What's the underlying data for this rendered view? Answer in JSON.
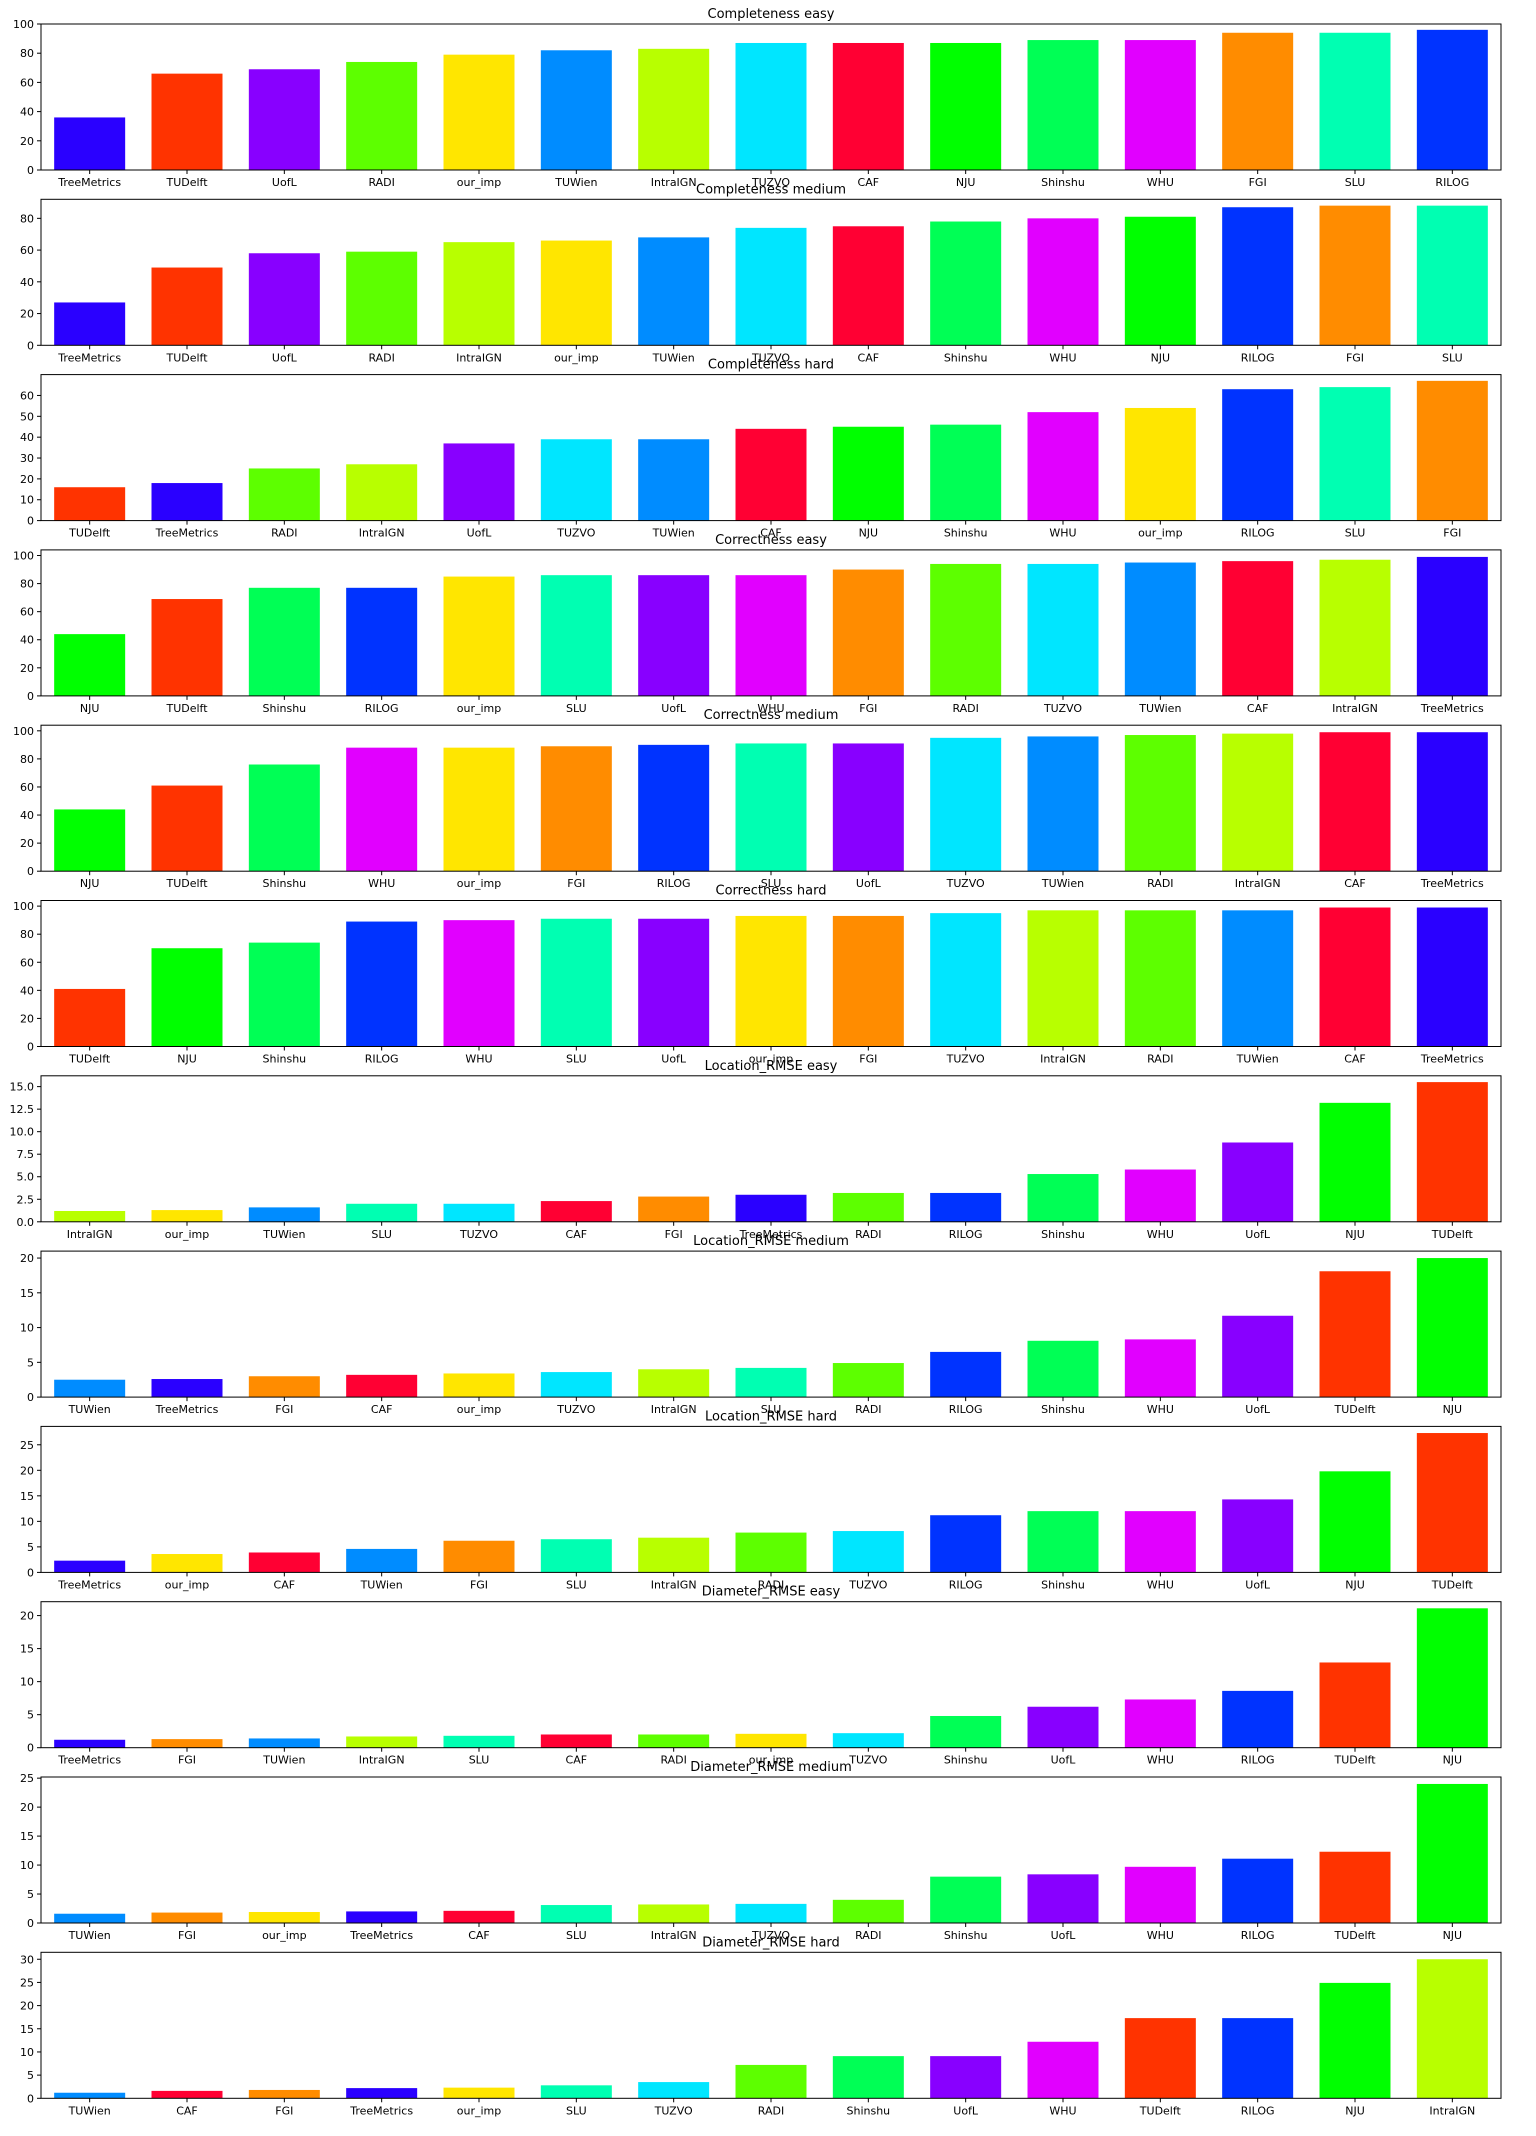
{
  "chart_data": [
    {
      "type": "bar",
      "title": "Completeness easy",
      "categories": [
        "TreeMetrics",
        "TUDelft",
        "UofL",
        "RADI",
        "our_imp",
        "TUWien",
        "IntraIGN",
        "TUZVO",
        "CAF",
        "NJU",
        "Shinshu",
        "WHU",
        "FGI",
        "SLU",
        "RILOG"
      ],
      "values": [
        36,
        66,
        69,
        74,
        79,
        82,
        83,
        87,
        87,
        87,
        89,
        89,
        94,
        94,
        96
      ],
      "ylim": [
        0,
        100
      ],
      "yticks": [
        "0",
        "20",
        "40",
        "60",
        "80",
        "100"
      ]
    },
    {
      "type": "bar",
      "title": "Completeness medium",
      "categories": [
        "TreeMetrics",
        "TUDelft",
        "UofL",
        "RADI",
        "IntraIGN",
        "our_imp",
        "TUWien",
        "TUZVO",
        "CAF",
        "Shinshu",
        "WHU",
        "NJU",
        "RILOG",
        "FGI",
        "SLU"
      ],
      "values": [
        27,
        49,
        58,
        59,
        65,
        66,
        68,
        74,
        75,
        78,
        80,
        81,
        87,
        88,
        88
      ],
      "ylim": [
        0,
        92
      ],
      "yticks": [
        "0",
        "20",
        "40",
        "60",
        "80"
      ]
    },
    {
      "type": "bar",
      "title": "Completeness hard",
      "categories": [
        "TUDelft",
        "TreeMetrics",
        "RADI",
        "IntraIGN",
        "UofL",
        "TUZVO",
        "TUWien",
        "CAF",
        "NJU",
        "Shinshu",
        "WHU",
        "our_imp",
        "RILOG",
        "SLU",
        "FGI"
      ],
      "values": [
        16,
        18,
        25,
        27,
        37,
        39,
        39,
        44,
        45,
        46,
        52,
        54,
        63,
        64,
        67
      ],
      "ylim": [
        0,
        70
      ],
      "yticks": [
        "0",
        "10",
        "20",
        "30",
        "40",
        "50",
        "60"
      ]
    },
    {
      "type": "bar",
      "title": "Correctness easy",
      "categories": [
        "NJU",
        "TUDelft",
        "Shinshu",
        "RILOG",
        "our_imp",
        "SLU",
        "UofL",
        "WHU",
        "FGI",
        "RADI",
        "TUZVO",
        "TUWien",
        "CAF",
        "IntraIGN",
        "TreeMetrics"
      ],
      "values": [
        44,
        69,
        77,
        77,
        85,
        86,
        86,
        86,
        90,
        94,
        94,
        95,
        96,
        97,
        99
      ],
      "ylim": [
        0,
        104
      ],
      "yticks": [
        "0",
        "20",
        "40",
        "60",
        "80",
        "100"
      ]
    },
    {
      "type": "bar",
      "title": "Correctness medium",
      "categories": [
        "NJU",
        "TUDelft",
        "Shinshu",
        "WHU",
        "our_imp",
        "FGI",
        "RILOG",
        "SLU",
        "UofL",
        "TUZVO",
        "TUWien",
        "RADI",
        "IntraIGN",
        "CAF",
        "TreeMetrics"
      ],
      "values": [
        44,
        61,
        76,
        88,
        88,
        89,
        90,
        91,
        91,
        95,
        96,
        97,
        98,
        99,
        99
      ],
      "ylim": [
        0,
        104
      ],
      "yticks": [
        "0",
        "20",
        "40",
        "60",
        "80",
        "100"
      ]
    },
    {
      "type": "bar",
      "title": "Correctness hard",
      "categories": [
        "TUDelft",
        "NJU",
        "Shinshu",
        "RILOG",
        "WHU",
        "SLU",
        "UofL",
        "our_imp",
        "FGI",
        "TUZVO",
        "IntraIGN",
        "RADI",
        "TUWien",
        "CAF",
        "TreeMetrics"
      ],
      "values": [
        41,
        70,
        74,
        89,
        90,
        91,
        91,
        93,
        93,
        95,
        97,
        97,
        97,
        99,
        99
      ],
      "ylim": [
        0,
        104
      ],
      "yticks": [
        "0",
        "20",
        "40",
        "60",
        "80",
        "100"
      ]
    },
    {
      "type": "bar",
      "title": "Location_RMSE easy",
      "categories": [
        "IntraIGN",
        "our_imp",
        "TUWien",
        "SLU",
        "TUZVO",
        "CAF",
        "FGI",
        "TreeMetrics",
        "RADI",
        "RILOG",
        "Shinshu",
        "WHU",
        "UofL",
        "NJU",
        "TUDelft"
      ],
      "values": [
        1.2,
        1.3,
        1.6,
        2.0,
        2.0,
        2.3,
        2.8,
        3.0,
        3.2,
        3.2,
        5.3,
        5.8,
        8.8,
        13.2,
        15.5
      ],
      "ylim": [
        0,
        16.2
      ],
      "yticks": [
        "0.0",
        "2.5",
        "5.0",
        "7.5",
        "10.0",
        "12.5",
        "15.0"
      ]
    },
    {
      "type": "bar",
      "title": "Location_RMSE medium",
      "categories": [
        "TUWien",
        "TreeMetrics",
        "FGI",
        "CAF",
        "our_imp",
        "TUZVO",
        "IntraIGN",
        "SLU",
        "RADI",
        "RILOG",
        "Shinshu",
        "WHU",
        "UofL",
        "TUDelft",
        "NJU"
      ],
      "values": [
        2.5,
        2.6,
        3.0,
        3.2,
        3.4,
        3.6,
        4.0,
        4.2,
        4.9,
        6.5,
        8.1,
        8.3,
        11.7,
        18.1,
        20.0
      ],
      "ylim": [
        0,
        21
      ],
      "yticks": [
        "0",
        "5",
        "10",
        "15",
        "20"
      ]
    },
    {
      "type": "bar",
      "title": "Location_RMSE hard",
      "categories": [
        "TreeMetrics",
        "our_imp",
        "CAF",
        "TUWien",
        "FGI",
        "SLU",
        "IntraIGN",
        "RADI",
        "TUZVO",
        "RILOG",
        "Shinshu",
        "WHU",
        "UofL",
        "NJU",
        "TUDelft"
      ],
      "values": [
        2.3,
        3.6,
        3.9,
        4.6,
        6.2,
        6.5,
        6.8,
        7.8,
        8.1,
        11.2,
        12.0,
        12.0,
        14.3,
        19.8,
        27.3
      ],
      "ylim": [
        0,
        28.6
      ],
      "yticks": [
        "0",
        "5",
        "10",
        "15",
        "20",
        "25"
      ]
    },
    {
      "type": "bar",
      "title": "Diameter_RMSE easy",
      "categories": [
        "TreeMetrics",
        "FGI",
        "TUWien",
        "IntraIGN",
        "SLU",
        "CAF",
        "RADI",
        "our_imp",
        "TUZVO",
        "Shinshu",
        "UofL",
        "WHU",
        "RILOG",
        "TUDelft",
        "NJU"
      ],
      "values": [
        1.2,
        1.3,
        1.4,
        1.7,
        1.8,
        2.0,
        2.0,
        2.1,
        2.2,
        4.8,
        6.2,
        7.3,
        8.6,
        12.9,
        21.1
      ],
      "ylim": [
        0,
        22.1
      ],
      "yticks": [
        "0",
        "5",
        "10",
        "15",
        "20"
      ]
    },
    {
      "type": "bar",
      "title": "Diameter_RMSE medium",
      "categories": [
        "TUWien",
        "FGI",
        "our_imp",
        "TreeMetrics",
        "CAF",
        "SLU",
        "IntraIGN",
        "TUZVO",
        "RADI",
        "Shinshu",
        "UofL",
        "WHU",
        "RILOG",
        "TUDelft",
        "NJU"
      ],
      "values": [
        1.6,
        1.8,
        1.9,
        2.0,
        2.1,
        3.1,
        3.2,
        3.3,
        4.0,
        8.0,
        8.4,
        9.7,
        11.1,
        12.3,
        24.0
      ],
      "ylim": [
        0,
        25.2
      ],
      "yticks": [
        "0",
        "5",
        "10",
        "15",
        "20",
        "25"
      ]
    },
    {
      "type": "bar",
      "title": "Diameter_RMSE hard",
      "categories": [
        "TUWien",
        "CAF",
        "FGI",
        "TreeMetrics",
        "our_imp",
        "SLU",
        "TUZVO",
        "RADI",
        "Shinshu",
        "UofL",
        "WHU",
        "TUDelft",
        "RILOG",
        "NJU",
        "IntraIGN"
      ],
      "values": [
        1.2,
        1.6,
        1.8,
        2.2,
        2.3,
        2.8,
        3.5,
        7.2,
        9.1,
        9.1,
        12.2,
        17.3,
        17.3,
        24.9,
        30.0
      ],
      "ylim": [
        0,
        31.5
      ],
      "yticks": [
        "0",
        "5",
        "10",
        "15",
        "20",
        "25",
        "30"
      ]
    }
  ],
  "colors": {
    "TreeMetrics": "#2a00ff",
    "TUDelft": "#ff3300",
    "UofL": "#8800ff",
    "RADI": "#5dff00",
    "our_imp": "#ffe600",
    "TUWien": "#008cff",
    "IntraIGN": "#b8ff00",
    "TUZVO": "#00e6ff",
    "CAF": "#ff0033",
    "NJU": "#00ff00",
    "Shinshu": "#00ff55",
    "WHU": "#e100ff",
    "FGI": "#ff8c00",
    "SLU": "#00ffb2",
    "RILOG": "#0033ff"
  }
}
